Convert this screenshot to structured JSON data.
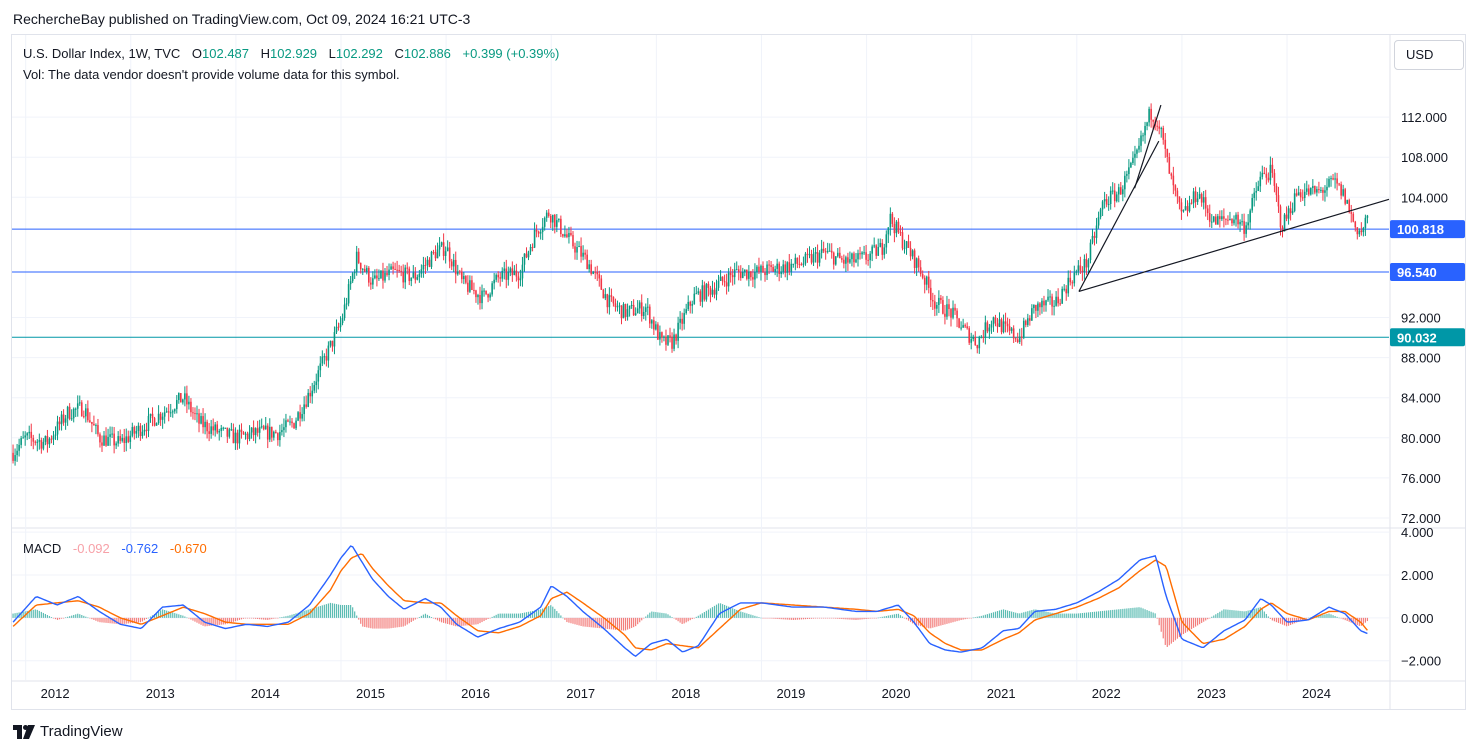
{
  "header": {
    "publish_text": "RechercheBay published on TradingView.com, Oct 09, 2024 16:21 UTC-3"
  },
  "legend": {
    "symbol": "U.S. Dollar Index, 1W, TVC",
    "open_label": "O",
    "open": "102.487",
    "high_label": "H",
    "high": "102.929",
    "low_label": "L",
    "low": "102.292",
    "close_label": "C",
    "close": "102.886",
    "change": "+0.399 (+0.39%)",
    "volume_note": "Vol: The data vendor doesn't provide volume data for this symbol."
  },
  "currency_button": "USD",
  "macd_legend": {
    "label": "MACD",
    "histogram": "-0.092",
    "macd": "-0.762",
    "signal": "-0.670"
  },
  "footer": {
    "brand": "TradingView"
  },
  "colors": {
    "up": "#089981",
    "down": "#f23645",
    "hline": "#2962ff",
    "hline_teal": "#0097a7",
    "macd_line": "#2962ff",
    "signal_line": "#ff6d00",
    "hist_up": "#26a69a",
    "hist_down": "#ef5350"
  },
  "chart_data": [
    {
      "type": "candlestick",
      "title": "U.S. Dollar Index, 1W, TVC",
      "price_axis": {
        "ticks": [
          72,
          76,
          80,
          84,
          88,
          92,
          104,
          108,
          112
        ],
        "tick_labels": [
          "72.000",
          "76.000",
          "80.000",
          "84.000",
          "88.000",
          "92.000",
          "104.000",
          "108.000",
          "112.000"
        ],
        "ylim": [
          71.2,
          116.5
        ]
      },
      "time_axis": {
        "ticks": [
          2012,
          2013,
          2014,
          2015,
          2016,
          2017,
          2018,
          2019,
          2020,
          2021,
          2022,
          2023,
          2024
        ],
        "xlim": [
          2011.87,
          2024.97
        ]
      },
      "horizontal_levels": [
        {
          "value": 100.818,
          "label": "100.818"
        },
        {
          "value": 96.54,
          "label": "96.540"
        },
        {
          "value": 90.032,
          "label": "90.032"
        }
      ],
      "trendlines": [
        {
          "from": [
            2022.02,
            94.6
          ],
          "to": [
            2024.97,
            103.8
          ]
        },
        {
          "from": [
            2022.02,
            94.6
          ],
          "to": [
            2022.78,
            109.6
          ]
        },
        {
          "from": [
            2022.55,
            104.9
          ],
          "to": [
            2022.8,
            113.2
          ]
        }
      ],
      "series": [
        {
          "name": "U.S. Dollar Index",
          "x": [
            2011.88,
            2012.0,
            2012.2,
            2012.4,
            2012.55,
            2012.7,
            2012.9,
            2013.1,
            2013.3,
            2013.5,
            2013.65,
            2013.85,
            2014.0,
            2014.2,
            2014.4,
            2014.55,
            2014.7,
            2014.85,
            2015.0,
            2015.15,
            2015.3,
            2015.5,
            2015.7,
            2015.9,
            2016.0,
            2016.15,
            2016.35,
            2016.5,
            2016.7,
            2016.85,
            2016.98,
            2017.15,
            2017.35,
            2017.55,
            2017.7,
            2017.9,
            2018.05,
            2018.15,
            2018.35,
            2018.55,
            2018.75,
            2018.95,
            2019.2,
            2019.4,
            2019.6,
            2019.8,
            2020.0,
            2020.15,
            2020.22,
            2020.35,
            2020.5,
            2020.65,
            2020.8,
            2020.95,
            2021.05,
            2021.2,
            2021.35,
            2021.45,
            2021.6,
            2021.8,
            2021.95,
            2022.1,
            2022.25,
            2022.4,
            2022.55,
            2022.7,
            2022.78,
            2022.9,
            2023.0,
            2023.15,
            2023.3,
            2023.5,
            2023.6,
            2023.75,
            2023.85,
            2023.95,
            2024.1,
            2024.3,
            2024.45,
            2024.55,
            2024.65,
            2024.72,
            2024.78
          ],
          "close": [
            78.5,
            80.0,
            79.5,
            82.5,
            83.0,
            80.0,
            79.5,
            81.0,
            82.5,
            84.0,
            81.5,
            80.5,
            80.0,
            80.5,
            80.5,
            81.5,
            84.5,
            88.0,
            91.5,
            98.0,
            95.5,
            96.5,
            96.0,
            98.5,
            99.0,
            95.5,
            94.0,
            96.0,
            96.5,
            100.5,
            102.5,
            100.0,
            97.5,
            93.5,
            92.5,
            93.0,
            89.5,
            89.5,
            94.0,
            95.0,
            96.5,
            96.5,
            97.0,
            97.5,
            98.5,
            97.5,
            98.0,
            99.0,
            102.0,
            99.5,
            97.0,
            93.5,
            92.5,
            90.5,
            89.5,
            92.0,
            90.5,
            90.0,
            93.0,
            93.5,
            96.0,
            97.5,
            103.5,
            104.5,
            107.5,
            112.5,
            111.5,
            105.5,
            102.0,
            104.5,
            101.5,
            102.0,
            101.0,
            106.0,
            106.5,
            101.0,
            104.5,
            104.5,
            105.5,
            104.0,
            101.0,
            100.5,
            102.9
          ]
        },
        {
          "name": "",
          "note": "horizontal support/resistance levels"
        }
      ]
    },
    {
      "type": "line",
      "title": "MACD",
      "value_axis": {
        "ticks": [
          -2,
          0,
          2,
          4
        ],
        "tick_labels": [
          "−2.000",
          "0.000",
          "2.000",
          "4.000"
        ],
        "ylim": [
          -2.9,
          4.1
        ]
      },
      "series": [
        {
          "name": "MACD",
          "x": [
            2011.88,
            2012.1,
            2012.3,
            2012.5,
            2012.7,
            2012.9,
            2013.1,
            2013.3,
            2013.5,
            2013.7,
            2013.9,
            2014.1,
            2014.3,
            2014.5,
            2014.7,
            2014.9,
            2015.0,
            2015.1,
            2015.2,
            2015.3,
            2015.45,
            2015.6,
            2015.8,
            2015.95,
            2016.1,
            2016.3,
            2016.5,
            2016.7,
            2016.9,
            2017.0,
            2017.15,
            2017.3,
            2017.5,
            2017.7,
            2017.8,
            2017.95,
            2018.1,
            2018.25,
            2018.4,
            2018.6,
            2018.8,
            2019.0,
            2019.3,
            2019.6,
            2019.9,
            2020.1,
            2020.3,
            2020.45,
            2020.6,
            2020.75,
            2020.9,
            2021.1,
            2021.3,
            2021.45,
            2021.6,
            2021.8,
            2022.0,
            2022.2,
            2022.4,
            2022.6,
            2022.75,
            2022.85,
            2023.0,
            2023.2,
            2023.4,
            2023.6,
            2023.75,
            2023.85,
            2024.0,
            2024.2,
            2024.4,
            2024.55,
            2024.7,
            2024.78
          ],
          "values": [
            -0.2,
            1.0,
            0.6,
            1.0,
            0.3,
            -0.3,
            -0.5,
            0.5,
            0.6,
            -0.2,
            -0.5,
            -0.3,
            -0.4,
            -0.2,
            0.6,
            2.0,
            2.8,
            3.4,
            2.6,
            1.8,
            1.0,
            0.4,
            0.9,
            0.5,
            -0.3,
            -0.9,
            -0.5,
            -0.2,
            0.5,
            1.5,
            1.0,
            0.3,
            -0.5,
            -1.4,
            -1.8,
            -1.2,
            -1.0,
            -1.6,
            -1.3,
            0.2,
            0.7,
            0.7,
            0.5,
            0.5,
            0.3,
            0.3,
            0.6,
            -0.2,
            -1.2,
            -1.5,
            -1.6,
            -1.4,
            -0.6,
            -0.5,
            0.3,
            0.4,
            0.7,
            1.2,
            1.8,
            2.7,
            2.9,
            1.0,
            -1.0,
            -1.4,
            -0.6,
            -0.1,
            0.9,
            0.6,
            -0.2,
            -0.1,
            0.5,
            0.2,
            -0.6,
            -0.76
          ]
        },
        {
          "name": "Signal",
          "x": [
            2011.88,
            2012.1,
            2012.3,
            2012.5,
            2012.7,
            2012.9,
            2013.1,
            2013.3,
            2013.5,
            2013.7,
            2013.9,
            2014.1,
            2014.3,
            2014.5,
            2014.7,
            2014.9,
            2015.0,
            2015.1,
            2015.2,
            2015.3,
            2015.45,
            2015.6,
            2015.8,
            2015.95,
            2016.1,
            2016.3,
            2016.5,
            2016.7,
            2016.9,
            2017.0,
            2017.15,
            2017.3,
            2017.5,
            2017.7,
            2017.8,
            2017.95,
            2018.1,
            2018.25,
            2018.4,
            2018.6,
            2018.8,
            2019.0,
            2019.3,
            2019.6,
            2019.9,
            2020.1,
            2020.3,
            2020.45,
            2020.6,
            2020.75,
            2020.9,
            2021.1,
            2021.3,
            2021.45,
            2021.6,
            2021.8,
            2022.0,
            2022.2,
            2022.4,
            2022.6,
            2022.75,
            2022.85,
            2023.0,
            2023.2,
            2023.4,
            2023.6,
            2023.75,
            2023.85,
            2024.0,
            2024.2,
            2024.4,
            2024.55,
            2024.7,
            2024.78
          ],
          "values": [
            -0.4,
            0.6,
            0.7,
            0.8,
            0.5,
            0.0,
            -0.3,
            0.1,
            0.5,
            0.2,
            -0.2,
            -0.3,
            -0.3,
            -0.3,
            0.2,
            1.3,
            2.2,
            2.8,
            3.0,
            2.3,
            1.5,
            0.8,
            0.7,
            0.7,
            0.1,
            -0.6,
            -0.7,
            -0.4,
            0.1,
            0.9,
            1.2,
            0.7,
            0.0,
            -0.8,
            -1.4,
            -1.5,
            -1.2,
            -1.3,
            -1.4,
            -0.5,
            0.4,
            0.7,
            0.6,
            0.5,
            0.4,
            0.3,
            0.4,
            0.1,
            -0.7,
            -1.2,
            -1.5,
            -1.5,
            -1.0,
            -0.7,
            -0.1,
            0.2,
            0.5,
            0.9,
            1.4,
            2.2,
            2.7,
            2.4,
            -0.2,
            -1.2,
            -1.0,
            -0.4,
            0.4,
            0.7,
            0.2,
            -0.1,
            0.3,
            0.3,
            -0.2,
            -0.67
          ]
        }
      ]
    }
  ]
}
